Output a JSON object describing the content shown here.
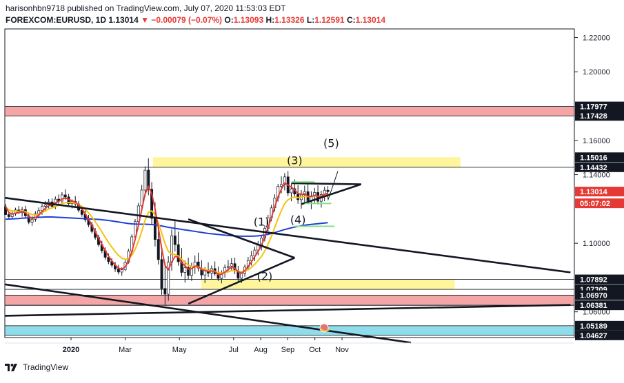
{
  "header": {
    "published_line": "harisonhbn9718 published on TradingView.com, July 07, 2020 11:53:03 EDT",
    "symbol": "FOREXCOM:EURUSD, 1D",
    "last": "1.13014",
    "change": "▼ −0.00079 (−0.07%)",
    "o_label": "O:",
    "o": "1.13093",
    "h_label": "H:",
    "h": "1.13326",
    "l_label": "L:",
    "l": "1.12591",
    "c_label": "C:",
    "c": "1.13014"
  },
  "footer": {
    "brand": "TradingView"
  },
  "colors": {
    "red": "#e53935",
    "yellow_zone": "#fff59d",
    "red_zone": "#f4a6a6",
    "blue_zone": "#8fdcea",
    "ma_red": "#e53935",
    "ma_yellow": "#f4c20d",
    "ma_blue": "#1e3fd6"
  },
  "chart_data": {
    "type": "candlestick",
    "symbol": "FOREXCOM:EURUSD",
    "timeframe": "1D",
    "ylim": [
      1.045,
      1.225
    ],
    "price_ticks": [
      "1.22000",
      "1.20000",
      "1.16000",
      "1.14000",
      "1.10000",
      "1.06000"
    ],
    "x_labels": [
      {
        "label": "2020",
        "month": 0
      },
      {
        "label": "Mar",
        "month": 2
      },
      {
        "label": "May",
        "month": 4
      },
      {
        "label": "Jul",
        "month": 6
      },
      {
        "label": "Aug",
        "month": 7
      },
      {
        "label": "Sep",
        "month": 8
      },
      {
        "label": "Oct",
        "month": 9
      },
      {
        "label": "Nov",
        "month": 10
      }
    ],
    "price_labels": [
      {
        "text": "1.17977",
        "value": 1.17977,
        "style": "dark"
      },
      {
        "text": "1.17428",
        "value": 1.17428,
        "style": "dark"
      },
      {
        "text": "1.15016",
        "value": 1.15016,
        "style": "dark"
      },
      {
        "text": "1.14432",
        "value": 1.14432,
        "style": "dark"
      },
      {
        "text": "1.13014",
        "value": 1.13014,
        "style": "red"
      },
      {
        "text": "05:07:02",
        "value": 1.1233,
        "style": "red"
      },
      {
        "text": "1.07892",
        "value": 1.07892,
        "style": "dark"
      },
      {
        "text": "1.07309",
        "value": 1.07309,
        "style": "dark"
      },
      {
        "text": "1.06970",
        "value": 1.0697,
        "style": "dark"
      },
      {
        "text": "1.06381",
        "value": 1.06381,
        "style": "dark"
      },
      {
        "text": "1.05189",
        "value": 1.05189,
        "style": "dark"
      },
      {
        "text": "1.04627",
        "value": 1.04627,
        "style": "dark"
      }
    ],
    "zones": [
      {
        "name": "resistance-zone-top",
        "y1": 1.17428,
        "y2": 1.17977,
        "color": "red",
        "x_start": 0.0,
        "x_end": 1.0
      },
      {
        "name": "resistance-zone-mid",
        "y1": 1.14432,
        "y2": 1.15016,
        "color": "yellow",
        "x_start": 0.26,
        "x_end": 0.8
      },
      {
        "name": "support-zone-yellow",
        "y1": 1.07309,
        "y2": 1.07892,
        "color": "yellow",
        "x_start": 0.345,
        "x_end": 0.79
      },
      {
        "name": "support-zone-red",
        "y1": 1.06381,
        "y2": 1.0697,
        "color": "red",
        "x_start": 0.0,
        "x_end": 1.0
      },
      {
        "name": "support-zone-blue",
        "y1": 1.04627,
        "y2": 1.05189,
        "color": "blue",
        "x_start": 0.0,
        "x_end": 1.0
      }
    ],
    "wave_labels": [
      "(1)",
      "(2)",
      "(3)",
      "(4)",
      "(5)"
    ],
    "candles": [
      [
        1.1213,
        1.1229,
        1.1174,
        1.1167
      ],
      [
        1.1167,
        1.1183,
        1.1138,
        1.1155
      ],
      [
        1.1155,
        1.1192,
        1.1145,
        1.1172
      ],
      [
        1.1172,
        1.1207,
        1.116,
        1.1194
      ],
      [
        1.1194,
        1.1217,
        1.117,
        1.1178
      ],
      [
        1.1178,
        1.1212,
        1.1155,
        1.1196
      ],
      [
        1.1196,
        1.1218,
        1.1143,
        1.116
      ],
      [
        1.116,
        1.1177,
        1.1111,
        1.1123
      ],
      [
        1.1123,
        1.1158,
        1.1102,
        1.114
      ],
      [
        1.114,
        1.1187,
        1.1126,
        1.1172
      ],
      [
        1.1172,
        1.1209,
        1.115,
        1.119
      ],
      [
        1.119,
        1.1229,
        1.1166,
        1.1216
      ],
      [
        1.1216,
        1.1246,
        1.1189,
        1.1224
      ],
      [
        1.1224,
        1.1258,
        1.1198,
        1.1241
      ],
      [
        1.1241,
        1.1262,
        1.1204,
        1.1215
      ],
      [
        1.1215,
        1.1273,
        1.1199,
        1.1257
      ],
      [
        1.1257,
        1.1284,
        1.1227,
        1.1246
      ],
      [
        1.1246,
        1.1298,
        1.1231,
        1.1282
      ],
      [
        1.1282,
        1.1315,
        1.1254,
        1.127
      ],
      [
        1.127,
        1.1288,
        1.1222,
        1.1231
      ],
      [
        1.1231,
        1.1256,
        1.1203,
        1.1244
      ],
      [
        1.1244,
        1.1275,
        1.1216,
        1.1229
      ],
      [
        1.1229,
        1.1247,
        1.118,
        1.1193
      ],
      [
        1.1193,
        1.1213,
        1.1154,
        1.1168
      ],
      [
        1.1168,
        1.1191,
        1.1123,
        1.1137
      ],
      [
        1.1137,
        1.1165,
        1.1094,
        1.1108
      ],
      [
        1.1108,
        1.1125,
        1.1057,
        1.1069
      ],
      [
        1.1069,
        1.1088,
        1.1021,
        1.1034
      ],
      [
        1.1034,
        1.1049,
        1.0979,
        1.0992
      ],
      [
        1.0992,
        1.1014,
        1.0942,
        1.0957
      ],
      [
        1.0957,
        1.0976,
        1.0903,
        1.0918
      ],
      [
        1.0918,
        1.094,
        1.0878,
        1.0893
      ],
      [
        1.0893,
        1.0912,
        1.0859,
        1.0872
      ],
      [
        1.0872,
        1.0891,
        1.0833,
        1.085
      ],
      [
        1.085,
        1.0874,
        1.0818,
        1.0832
      ],
      [
        1.0832,
        1.0859,
        1.081,
        1.0845
      ],
      [
        1.0845,
        1.0902,
        1.0838,
        1.0889
      ],
      [
        1.0889,
        1.0968,
        1.0881,
        1.0954
      ],
      [
        1.0954,
        1.1052,
        1.0943,
        1.1037
      ],
      [
        1.1037,
        1.1141,
        1.1023,
        1.1126
      ],
      [
        1.1126,
        1.1236,
        1.111,
        1.1218
      ],
      [
        1.1218,
        1.134,
        1.1198,
        1.131
      ],
      [
        1.131,
        1.1449,
        1.127,
        1.1426
      ],
      [
        1.1426,
        1.1496,
        1.128,
        1.1315
      ],
      [
        1.1315,
        1.1357,
        1.1108,
        1.1145
      ],
      [
        1.1145,
        1.1239,
        1.0981,
        1.1022
      ],
      [
        1.1022,
        1.1103,
        1.0876,
        1.0905
      ],
      [
        1.0905,
        1.0971,
        1.07,
        1.0736
      ],
      [
        1.0736,
        1.0887,
        1.0636,
        1.0703
      ],
      [
        1.0703,
        1.0924,
        1.0665,
        1.0889
      ],
      [
        1.0889,
        1.1081,
        1.084,
        1.1043
      ],
      [
        1.1043,
        1.114,
        1.0952,
        1.0992
      ],
      [
        1.0992,
        1.1068,
        1.0869,
        1.0892
      ],
      [
        1.0892,
        1.0972,
        1.0806,
        1.083
      ],
      [
        1.083,
        1.0899,
        1.077,
        1.0858
      ],
      [
        1.0858,
        1.0916,
        1.0788,
        1.0812
      ],
      [
        1.0812,
        1.0887,
        1.078,
        1.0863
      ],
      [
        1.0863,
        1.0929,
        1.082,
        1.0891
      ],
      [
        1.0891,
        1.0945,
        1.0835,
        1.0855
      ],
      [
        1.0855,
        1.0901,
        1.079,
        1.0815
      ],
      [
        1.0815,
        1.0861,
        1.0768,
        1.0844
      ],
      [
        1.0844,
        1.0889,
        1.0803,
        1.0826
      ],
      [
        1.0826,
        1.087,
        1.0791,
        1.0852
      ],
      [
        1.0852,
        1.0894,
        1.0809,
        1.0822
      ],
      [
        1.0822,
        1.0864,
        1.078,
        1.0795
      ],
      [
        1.0795,
        1.0842,
        1.0766,
        1.0828
      ],
      [
        1.0828,
        1.0876,
        1.08,
        1.0859
      ],
      [
        1.0859,
        1.0902,
        1.0831,
        1.0866
      ],
      [
        1.0866,
        1.0913,
        1.0837,
        1.0881
      ],
      [
        1.0881,
        1.0916,
        1.082,
        1.0838
      ],
      [
        1.0838,
        1.0868,
        1.0778,
        1.0796
      ],
      [
        1.0796,
        1.0836,
        1.0768,
        1.0824
      ],
      [
        1.0824,
        1.0876,
        1.0805,
        1.0861
      ],
      [
        1.0861,
        1.092,
        1.0844,
        1.0899
      ],
      [
        1.0899,
        1.0955,
        1.087,
        1.0927
      ],
      [
        1.0927,
        1.0979,
        1.0896,
        1.096
      ],
      [
        1.096,
        1.1013,
        1.093,
        1.0989
      ],
      [
        1.0989,
        1.105,
        1.0958,
        1.103
      ],
      [
        1.103,
        1.1105,
        1.101,
        1.1087
      ],
      [
        1.1087,
        1.1166,
        1.107,
        1.1148
      ],
      [
        1.1148,
        1.1224,
        1.1128,
        1.1206
      ],
      [
        1.1206,
        1.1285,
        1.1185,
        1.1264
      ],
      [
        1.1264,
        1.1346,
        1.1243,
        1.1331
      ],
      [
        1.1331,
        1.139,
        1.1292,
        1.1342
      ],
      [
        1.1342,
        1.1409,
        1.1308,
        1.1387
      ],
      [
        1.1387,
        1.1421,
        1.1275,
        1.1294
      ],
      [
        1.1294,
        1.1348,
        1.1245,
        1.1318
      ],
      [
        1.1318,
        1.1372,
        1.1268,
        1.1287
      ],
      [
        1.1287,
        1.1339,
        1.123,
        1.1254
      ],
      [
        1.1254,
        1.131,
        1.1202,
        1.1282
      ],
      [
        1.1282,
        1.1336,
        1.124,
        1.1301
      ],
      [
        1.1301,
        1.1347,
        1.1232,
        1.1248
      ],
      [
        1.1248,
        1.1303,
        1.1199,
        1.1276
      ],
      [
        1.1276,
        1.1322,
        1.1236,
        1.1296
      ],
      [
        1.1296,
        1.1338,
        1.1226,
        1.1245
      ],
      [
        1.1245,
        1.1306,
        1.1208,
        1.1284
      ],
      [
        1.1284,
        1.133,
        1.1245,
        1.1309
      ],
      [
        1.1309,
        1.1333,
        1.1259,
        1.1301
      ]
    ],
    "ma_fast_red": [
      1.1213,
      1.118,
      1.117,
      1.1175,
      1.118,
      1.1186,
      1.1178,
      1.1156,
      1.1145,
      1.115,
      1.1163,
      1.1185,
      1.1203,
      1.122,
      1.1226,
      1.1236,
      1.1244,
      1.1258,
      1.1264,
      1.1256,
      1.1248,
      1.124,
      1.1222,
      1.12,
      1.1172,
      1.114,
      1.1105,
      1.1068,
      1.103,
      1.0993,
      1.0957,
      1.0925,
      1.0898,
      1.0873,
      1.0854,
      1.0849,
      1.0862,
      1.0894,
      1.095,
      1.1022,
      1.1105,
      1.1195,
      1.1287,
      1.133,
      1.129,
      1.12,
      1.109,
      1.097,
      1.087,
      1.0846,
      1.089,
      1.0923,
      1.092,
      1.0888,
      1.0868,
      1.0849,
      1.0852,
      1.0866,
      1.0866,
      1.0846,
      1.084,
      1.0836,
      1.0838,
      1.0834,
      1.0818,
      1.0819,
      1.0832,
      1.0846,
      1.086,
      1.0855,
      1.0833,
      1.0826,
      1.084,
      1.0864,
      1.0892,
      1.0922,
      1.0952,
      1.0988,
      1.1036,
      1.1092,
      1.115,
      1.121,
      1.127,
      1.1315,
      1.135,
      1.134,
      1.1328,
      1.1312,
      1.129,
      1.1285,
      1.1288,
      1.1275,
      1.1273,
      1.128,
      1.1272,
      1.1275,
      1.1285,
      1.1292
    ],
    "ma_slow_yellow": [
      1.1213,
      1.1195,
      1.1188,
      1.1186,
      1.1186,
      1.1188,
      1.1185,
      1.1175,
      1.1167,
      1.1165,
      1.1168,
      1.1178,
      1.1188,
      1.12,
      1.1206,
      1.1214,
      1.1221,
      1.1231,
      1.1237,
      1.1237,
      1.1236,
      1.1234,
      1.1226,
      1.1214,
      1.1197,
      1.1177,
      1.1153,
      1.1126,
      1.1097,
      1.1066,
      1.1034,
      1.1004,
      1.0977,
      1.0951,
      1.0929,
      1.0913,
      1.0906,
      1.091,
      1.0929,
      1.0964,
      1.1012,
      1.1069,
      1.1134,
      1.118,
      1.1189,
      1.1164,
      1.1119,
      1.106,
      1.0998,
      1.0952,
      1.0937,
      1.0934,
      1.0926,
      1.0906,
      1.0889,
      1.0872,
      1.0865,
      1.0864,
      1.0861,
      1.0853,
      1.0847,
      1.0841,
      1.084,
      1.0837,
      1.0829,
      1.0826,
      1.0828,
      1.0833,
      1.084,
      1.0841,
      1.0836,
      1.0833,
      1.0836,
      1.0845,
      1.0859,
      1.0877,
      1.0898,
      1.0923,
      1.0955,
      1.0995,
      1.104,
      1.109,
      1.1143,
      1.119,
      1.1232,
      1.1253,
      1.1265,
      1.1269,
      1.1266,
      1.1269,
      1.1274,
      1.1272,
      1.1272,
      1.1276,
      1.1274,
      1.1275,
      1.1279,
      1.1283
    ],
    "ma_long_blue": [
      1.114,
      1.1141,
      1.1142,
      1.1143,
      1.1144,
      1.1146,
      1.1147,
      1.1148,
      1.1149,
      1.115,
      1.1151,
      1.1152,
      1.1153,
      1.1153,
      1.1153,
      1.1152,
      1.1151,
      1.115,
      1.1149,
      1.1148,
      1.1147,
      1.1146,
      1.1145,
      1.1144,
      1.1143,
      1.1142,
      1.1141,
      1.114,
      1.1139,
      1.1137,
      1.1135,
      1.1133,
      1.113,
      1.1127,
      1.1124,
      1.1121,
      1.1118,
      1.1115,
      1.1113,
      1.1112,
      1.1111,
      1.1111,
      1.1111,
      1.111,
      1.1109,
      1.1107,
      1.1104,
      1.1101,
      1.1097,
      1.1093,
      1.109,
      1.1087,
      1.1084,
      1.1081,
      1.1078,
      1.1075,
      1.1072,
      1.1069,
      1.1066,
      1.1063,
      1.106,
      1.1057,
      1.1055,
      1.1053,
      1.1051,
      1.1049,
      1.1047,
      1.1045,
      1.1044,
      1.1043,
      1.1042,
      1.1041,
      1.1041,
      1.1041,
      1.1041,
      1.1042,
      1.1043,
      1.1045,
      1.1048,
      1.1052,
      1.1057,
      1.1062,
      1.1068,
      1.1074,
      1.108,
      1.1085,
      1.109,
      1.1094,
      1.1098,
      1.1102,
      1.1105,
      1.1108,
      1.111,
      1.1112,
      1.1114,
      1.1116,
      1.1118,
      1.112
    ]
  }
}
